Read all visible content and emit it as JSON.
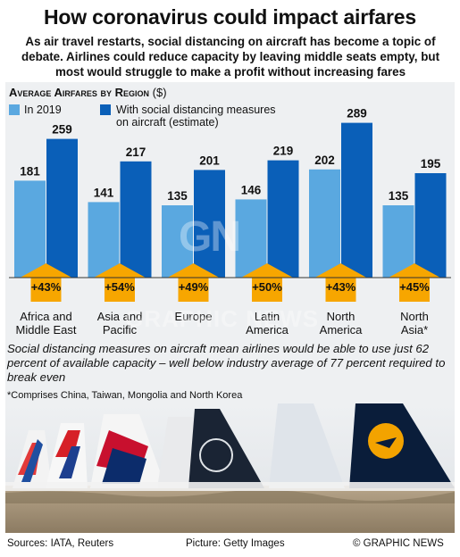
{
  "header": {
    "title": "How coronavirus could impact airfares",
    "intro": "As air travel restarts, social distancing on aircraft has become a topic of debate. Airlines could reduce capacity by leaving middle seats empty, but most would struggle to make a profit without increasing fares"
  },
  "chart_header": {
    "title": "Average Airfares by Region",
    "unit": "($)"
  },
  "legend": {
    "series_2019": "In 2019",
    "series_distancing_line1": "With social distancing measures",
    "series_distancing_line2": "on aircraft (estimate)"
  },
  "colors": {
    "light_blue": "#5aa8e0",
    "dark_blue": "#0a5fb8",
    "arrow_orange": "#f7a600",
    "panel_bg": "#eef0f2"
  },
  "chart_data": {
    "type": "bar",
    "title": "Average Airfares by Region",
    "ylabel": "$",
    "categories": [
      "Africa and Middle East",
      "Asia and Pacific",
      "Europe",
      "Latin America",
      "North America",
      "North Asia*"
    ],
    "category_lines": [
      [
        "Africa and",
        "Middle East"
      ],
      [
        "Asia and",
        "Pacific"
      ],
      [
        "Europe",
        ""
      ],
      [
        "Latin",
        "America"
      ],
      [
        "North",
        "America"
      ],
      [
        "North",
        "Asia*"
      ]
    ],
    "series": [
      {
        "name": "In 2019",
        "values": [
          181,
          141,
          135,
          146,
          202,
          135
        ]
      },
      {
        "name": "With social distancing measures on aircraft (estimate)",
        "values": [
          259,
          217,
          201,
          219,
          289,
          195
        ]
      }
    ],
    "increase_labels": [
      "+43%",
      "+54%",
      "+49%",
      "+50%",
      "+43%",
      "+45%"
    ],
    "ylim": [
      0,
      300
    ],
    "grid": false,
    "legend_position": "top-left"
  },
  "note": "Social distancing measures on aircraft mean airlines would be able to use just 62 percent of available capacity – well below industry average of 77 percent required to break even",
  "footnote": "*Comprises China, Taiwan, Mongolia and North Korea",
  "footer": {
    "sources": "Sources: IATA, Reuters",
    "picture": "Picture: Getty Images",
    "credit": "© GRAPHIC NEWS"
  },
  "watermark": {
    "logo": "GN",
    "text": "GRAPHIC NEWS"
  }
}
